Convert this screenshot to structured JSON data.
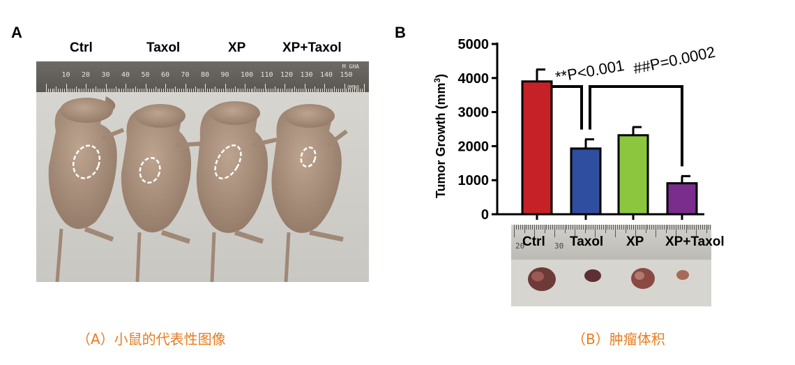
{
  "panel_a": {
    "letter": "A",
    "groups": [
      "Ctrl",
      "Taxol",
      "XP",
      "XP+Taxol"
    ],
    "ruler_numbers": [
      "10",
      "20",
      "30",
      "40",
      "50",
      "60",
      "70",
      "80",
      "90",
      "100",
      "110",
      "120",
      "130",
      "140",
      "150"
    ],
    "ruler_brand": "M GHA",
    "ruler_brand2": "QM50",
    "caption": "（A）小鼠的代表性图像"
  },
  "panel_b": {
    "letter": "B",
    "tumor_labels": [
      "Ctrl",
      "Taxol",
      "XP",
      "XP+Taxol"
    ],
    "ruler_numbers": [
      "20",
      "30"
    ],
    "caption": "（B）肿瘤体积"
  },
  "chart_data": {
    "type": "bar",
    "categories": [
      "Ctrl",
      "Taxol",
      "XP",
      "XP+Taxol"
    ],
    "values": [
      3900,
      1930,
      2320,
      910
    ],
    "errors": [
      350,
      270,
      240,
      210
    ],
    "colors": [
      "#c62127",
      "#2f4ea0",
      "#8cc63f",
      "#7b2d8e"
    ],
    "ylabel_main": "Tumor Growth (mm",
    "ylabel_sup": "3",
    "ylabel_close": ")",
    "ylim": [
      0,
      5000
    ],
    "yticks": [
      "0",
      "1000",
      "2000",
      "3000",
      "4000",
      "5000"
    ],
    "annotations": [
      {
        "text": "**P<0.001",
        "from": 0,
        "to": 1
      },
      {
        "text": "##P=0.0002",
        "from": 1,
        "to": 3
      }
    ]
  }
}
